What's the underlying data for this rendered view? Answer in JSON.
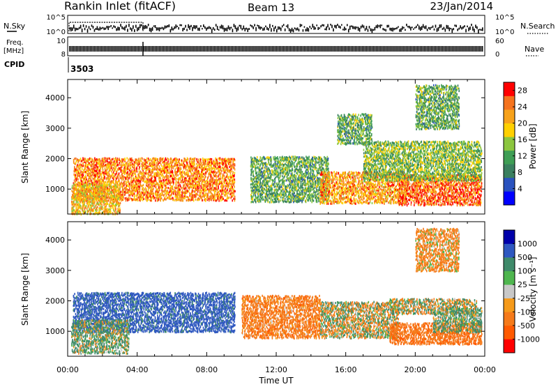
{
  "header": {
    "station": "Rankin Inlet (fitACF)",
    "beam": "Beam 13",
    "date": "23/Jan/2014"
  },
  "strip_labels": {
    "nsky": "N.Sky",
    "nsky_ticks": [
      "10^5",
      "10^0"
    ],
    "nsearch": "N.Search",
    "nsearch_ticks": [
      "10^5",
      "10^0"
    ],
    "freq_line1": "Freq.",
    "freq_line2": "[MHz]",
    "freq_ticks": [
      "10",
      "8"
    ],
    "nave": "Nave",
    "nave_ticks": [
      "60",
      "0"
    ],
    "cpid_label": "CPID",
    "cpid_value": "3503"
  },
  "colors": {
    "power": [
      "#0000ff",
      "#2a52be",
      "#3a7f5f",
      "#3f9e55",
      "#8cc63f",
      "#ffd000",
      "#f7a21b",
      "#f5731e",
      "#ff0000"
    ],
    "velocity": [
      "#0000aa",
      "#2f58c0",
      "#3f8a6a",
      "#4fb64f",
      "#c8c8c8",
      "#f59a1a",
      "#f57a1a",
      "#ff5a00",
      "#ff0000"
    ]
  },
  "chart_data": [
    {
      "type": "heatmap",
      "panel": "power",
      "ylabel": "Slant Range [km]",
      "xlabel": "",
      "x_ticks": [
        "00:00",
        "04:00",
        "08:00",
        "12:00",
        "16:00",
        "20:00",
        "00:00"
      ],
      "x_range_hours": [
        0,
        24
      ],
      "y_ticks": [
        1000,
        2000,
        3000,
        4000
      ],
      "y_range_km": [
        180,
        4600
      ],
      "colorbar_label": "Power [dB]",
      "colorbar_ticks": [
        4,
        8,
        12,
        16,
        20,
        24,
        28
      ],
      "colorbar_range": [
        0,
        30
      ],
      "regions": [
        {
          "t0": 0.3,
          "t1": 9.6,
          "r0": 650,
          "r1": 2050,
          "v": 23
        },
        {
          "t0": 0.2,
          "t1": 3.0,
          "r0": 200,
          "r1": 1200,
          "v": 20
        },
        {
          "t0": 10.5,
          "t1": 15.0,
          "r0": 600,
          "r1": 2100,
          "v": 12
        },
        {
          "t0": 14.5,
          "t1": 19.5,
          "r0": 550,
          "r1": 1600,
          "v": 22
        },
        {
          "t0": 19.0,
          "t1": 23.8,
          "r0": 500,
          "r1": 1500,
          "v": 25
        },
        {
          "t0": 17.0,
          "t1": 23.8,
          "r0": 1300,
          "r1": 2600,
          "v": 14
        },
        {
          "t0": 20.0,
          "t1": 22.5,
          "r0": 3000,
          "r1": 4450,
          "v": 12
        },
        {
          "t0": 15.5,
          "t1": 17.5,
          "r0": 2500,
          "r1": 3500,
          "v": 12
        }
      ]
    },
    {
      "type": "heatmap",
      "panel": "velocity",
      "ylabel": "Slant Range [km]",
      "xlabel": "Time UT",
      "x_ticks": [
        "00:00",
        "04:00",
        "08:00",
        "12:00",
        "16:00",
        "20:00",
        "00:00"
      ],
      "x_range_hours": [
        0,
        24
      ],
      "y_ticks": [
        1000,
        2000,
        3000,
        4000
      ],
      "y_range_km": [
        180,
        4600
      ],
      "colorbar_label": "Velocity [m s⁻¹]",
      "colorbar_ticks": [
        "1000",
        "500",
        "100",
        "25",
        "-25",
        "-100",
        "-500",
        "-1000"
      ],
      "regions": [
        {
          "t0": 0.3,
          "t1": 9.6,
          "r0": 1000,
          "r1": 2300,
          "v": 700
        },
        {
          "t0": 0.2,
          "t1": 3.5,
          "r0": 300,
          "r1": 1400,
          "v": 150
        },
        {
          "t0": 10.0,
          "t1": 14.5,
          "r0": 800,
          "r1": 2200,
          "v": -300
        },
        {
          "t0": 14.5,
          "t1": 19.0,
          "r0": 800,
          "r1": 2000,
          "v": -10
        },
        {
          "t0": 18.5,
          "t1": 23.8,
          "r0": 600,
          "r1": 1300,
          "v": -400
        },
        {
          "t0": 18.5,
          "t1": 23.5,
          "r0": 1600,
          "r1": 2100,
          "v": 0
        },
        {
          "t0": 21.0,
          "t1": 23.8,
          "r0": 1000,
          "r1": 1800,
          "v": 150
        },
        {
          "t0": 20.0,
          "t1": 22.5,
          "r0": 3000,
          "r1": 4400,
          "v": -200
        }
      ]
    }
  ]
}
